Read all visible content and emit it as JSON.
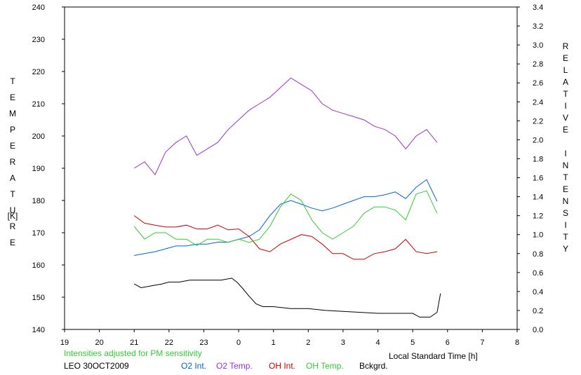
{
  "chart_data": {
    "type": "line",
    "left_axis": {
      "label": "TEMPERATURE",
      "unit": "[K]",
      "ylim": [
        140,
        240
      ],
      "ticks": [
        "140",
        "150",
        "160",
        "170",
        "180",
        "190",
        "200",
        "210",
        "220",
        "230",
        "240"
      ]
    },
    "right_axis": {
      "label": "RELATIVE INTENSITY",
      "ylim": [
        0.0,
        3.4
      ],
      "ticks": [
        "0.0",
        "0.2",
        "0.4",
        "0.6",
        "0.8",
        "1.0",
        "1.2",
        "1.4",
        "1.6",
        "1.8",
        "2.0",
        "2.2",
        "2.4",
        "2.6",
        "2.8",
        "3.0",
        "3.2",
        "3.4"
      ]
    },
    "x_axis": {
      "label": "Local Standard Time [h]",
      "xlim": [
        19,
        32
      ],
      "ticks": [
        "19",
        "20",
        "21",
        "22",
        "23",
        "0",
        "1",
        "2",
        "3",
        "4",
        "5",
        "6",
        "7",
        "8"
      ]
    },
    "note": "Intensities adjusted for PM sensitivity",
    "site_date": "LEO 30OCT2009",
    "series": [
      {
        "name": "O2 Int.",
        "color": "#0066cc",
        "axis": "right",
        "x": [
          21.0,
          21.3,
          21.6,
          21.9,
          22.2,
          22.5,
          22.8,
          23.1,
          23.4,
          23.7,
          24.0,
          24.3,
          24.6,
          24.9,
          25.2,
          25.5,
          25.8,
          26.1,
          26.4,
          26.7,
          27.0,
          27.3,
          27.6,
          27.9,
          28.2,
          28.5,
          28.8,
          29.1,
          29.4,
          29.7
        ],
        "values": [
          0.78,
          0.8,
          0.82,
          0.85,
          0.88,
          0.88,
          0.9,
          0.9,
          0.92,
          0.92,
          0.95,
          0.98,
          1.05,
          1.2,
          1.32,
          1.36,
          1.32,
          1.28,
          1.25,
          1.28,
          1.32,
          1.36,
          1.4,
          1.4,
          1.42,
          1.45,
          1.38,
          1.5,
          1.58,
          1.35
        ]
      },
      {
        "name": "O2 Temp.",
        "color": "#9933cc",
        "axis": "left",
        "x": [
          21.0,
          21.3,
          21.6,
          21.9,
          22.2,
          22.5,
          22.8,
          23.1,
          23.4,
          23.7,
          24.0,
          24.3,
          24.6,
          24.9,
          25.2,
          25.5,
          25.8,
          26.1,
          26.4,
          26.7,
          27.0,
          27.3,
          27.6,
          27.9,
          28.2,
          28.5,
          28.8,
          29.1,
          29.4,
          29.7
        ],
        "values": [
          190,
          192,
          188,
          195,
          198,
          200,
          194,
          196,
          198,
          202,
          205,
          208,
          210,
          212,
          215,
          218,
          216,
          214,
          210,
          208,
          207,
          206,
          205,
          203,
          202,
          200,
          196,
          200,
          202,
          198
        ]
      },
      {
        "name": "OH Int.",
        "color": "#cc0000",
        "axis": "right",
        "x": [
          21.0,
          21.3,
          21.6,
          21.9,
          22.2,
          22.5,
          22.8,
          23.1,
          23.4,
          23.7,
          24.0,
          24.3,
          24.6,
          24.9,
          25.2,
          25.5,
          25.8,
          26.1,
          26.4,
          26.7,
          27.0,
          27.3,
          27.6,
          27.9,
          28.2,
          28.5,
          28.8,
          29.1,
          29.4,
          29.7
        ],
        "values": [
          1.2,
          1.12,
          1.1,
          1.08,
          1.08,
          1.1,
          1.06,
          1.06,
          1.1,
          1.05,
          1.06,
          0.98,
          0.85,
          0.82,
          0.9,
          0.95,
          1.0,
          0.98,
          0.9,
          0.8,
          0.8,
          0.74,
          0.74,
          0.8,
          0.82,
          0.85,
          0.95,
          0.82,
          0.8,
          0.82
        ]
      },
      {
        "name": "OH Temp.",
        "color": "#33cc33",
        "axis": "left",
        "x": [
          21.0,
          21.3,
          21.6,
          21.9,
          22.2,
          22.5,
          22.8,
          23.1,
          23.4,
          23.7,
          24.0,
          24.3,
          24.6,
          24.9,
          25.2,
          25.5,
          25.8,
          26.1,
          26.4,
          26.7,
          27.0,
          27.3,
          27.6,
          27.9,
          28.2,
          28.5,
          28.8,
          29.1,
          29.4,
          29.7
        ],
        "values": [
          172,
          168,
          170,
          170,
          168,
          168,
          166,
          168,
          168,
          167,
          168,
          167,
          168,
          172,
          178,
          182,
          180,
          174,
          170,
          168,
          170,
          172,
          176,
          178,
          178,
          177,
          174,
          182,
          183,
          176
        ]
      },
      {
        "name": "Bckgrd.",
        "color": "#000000",
        "axis": "right",
        "x": [
          21.0,
          21.2,
          21.5,
          21.8,
          22.0,
          22.3,
          22.6,
          22.9,
          23.2,
          23.5,
          23.8,
          23.95,
          24.1,
          24.3,
          24.5,
          24.7,
          25.0,
          25.5,
          26.0,
          26.5,
          27.0,
          27.5,
          28.0,
          28.5,
          29.0,
          29.2,
          29.5,
          29.7,
          29.8
        ],
        "values": [
          0.48,
          0.44,
          0.46,
          0.48,
          0.5,
          0.5,
          0.52,
          0.52,
          0.52,
          0.52,
          0.54,
          0.5,
          0.44,
          0.35,
          0.27,
          0.24,
          0.24,
          0.22,
          0.22,
          0.2,
          0.19,
          0.18,
          0.17,
          0.17,
          0.17,
          0.13,
          0.13,
          0.18,
          0.38
        ]
      }
    ]
  }
}
